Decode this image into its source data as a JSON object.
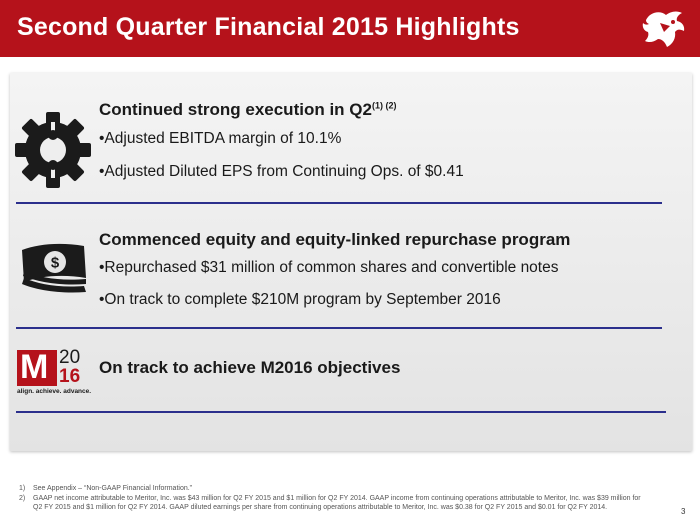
{
  "header": {
    "title": "Second Quarter Financial 2015 Highlights",
    "logo_icon": "bull-head-logo-icon",
    "color": "#b5121b"
  },
  "sections": [
    {
      "icon": "gear-icon",
      "title": "Continued strong execution in Q2",
      "superscript": "(1) (2)",
      "bullets": [
        "•Adjusted EBITDA margin of 10.1%",
        "•Adjusted Diluted EPS from Continuing Ops. of $0.41"
      ]
    },
    {
      "icon": "money-bills-icon",
      "title": "Commenced equity and equity-linked repurchase program",
      "bullets": [
        "•Repurchased $31 million of common shares and convertible notes",
        "•On track to complete $210M program by September 2016"
      ]
    },
    {
      "icon": "m2016-logo-icon",
      "logo": {
        "letter": "M",
        "year_top": "20",
        "year_bottom": "16",
        "tagline": "align. achieve. advance."
      },
      "title": "On track to achieve M2016 objectives"
    }
  ],
  "footnotes": [
    {
      "num": "1)",
      "text": "See Appendix – “Non-GAAP Financial Information.”"
    },
    {
      "num": "2)",
      "text": "GAAP net income  attributable to Meritor, Inc. was $43 million for Q2 FY 2015 and $1 million for Q2 FY 2014. GAAP income from continuing operations attributable to Meritor, Inc. was $39 million for Q2 FY 2015 and $1 million for Q2 FY 2014. GAAP diluted earnings per share from continuing operations attributable to Meritor, Inc. was $0.38 for Q2 FY 2015 and $0.01 for Q2 FY 2014."
    }
  ],
  "page_number": "3",
  "colors": {
    "divider": "#2b2f8c",
    "accent": "#b5121b"
  }
}
